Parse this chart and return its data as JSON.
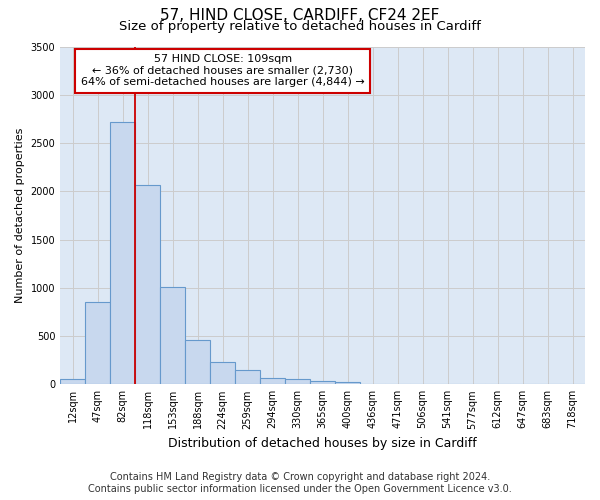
{
  "title": "57, HIND CLOSE, CARDIFF, CF24 2EF",
  "subtitle": "Size of property relative to detached houses in Cardiff",
  "xlabel": "Distribution of detached houses by size in Cardiff",
  "ylabel": "Number of detached properties",
  "footer_line1": "Contains HM Land Registry data © Crown copyright and database right 2024.",
  "footer_line2": "Contains public sector information licensed under the Open Government Licence v3.0.",
  "categories": [
    "12sqm",
    "47sqm",
    "82sqm",
    "118sqm",
    "153sqm",
    "188sqm",
    "224sqm",
    "259sqm",
    "294sqm",
    "330sqm",
    "365sqm",
    "400sqm",
    "436sqm",
    "471sqm",
    "506sqm",
    "541sqm",
    "577sqm",
    "612sqm",
    "647sqm",
    "683sqm",
    "718sqm"
  ],
  "bar_values": [
    60,
    850,
    2720,
    2060,
    1010,
    460,
    230,
    145,
    70,
    55,
    30,
    20,
    0,
    0,
    0,
    0,
    0,
    0,
    0,
    0,
    0
  ],
  "bar_color": "#c8d8ee",
  "bar_edge_color": "#6699cc",
  "ylim": [
    0,
    3500
  ],
  "yticks": [
    0,
    500,
    1000,
    1500,
    2000,
    2500,
    3000,
    3500
  ],
  "red_line_x": 2.5,
  "annotation_text": "57 HIND CLOSE: 109sqm\n← 36% of detached houses are smaller (2,730)\n64% of semi-detached houses are larger (4,844) →",
  "annotation_box_color": "#ffffff",
  "annotation_box_edge_color": "#cc0000",
  "grid_color": "#cccccc",
  "bg_color": "#dde8f5",
  "title_fontsize": 11,
  "subtitle_fontsize": 9.5,
  "xlabel_fontsize": 9,
  "ylabel_fontsize": 8,
  "tick_fontsize": 7,
  "annotation_fontsize": 8,
  "footer_fontsize": 7
}
